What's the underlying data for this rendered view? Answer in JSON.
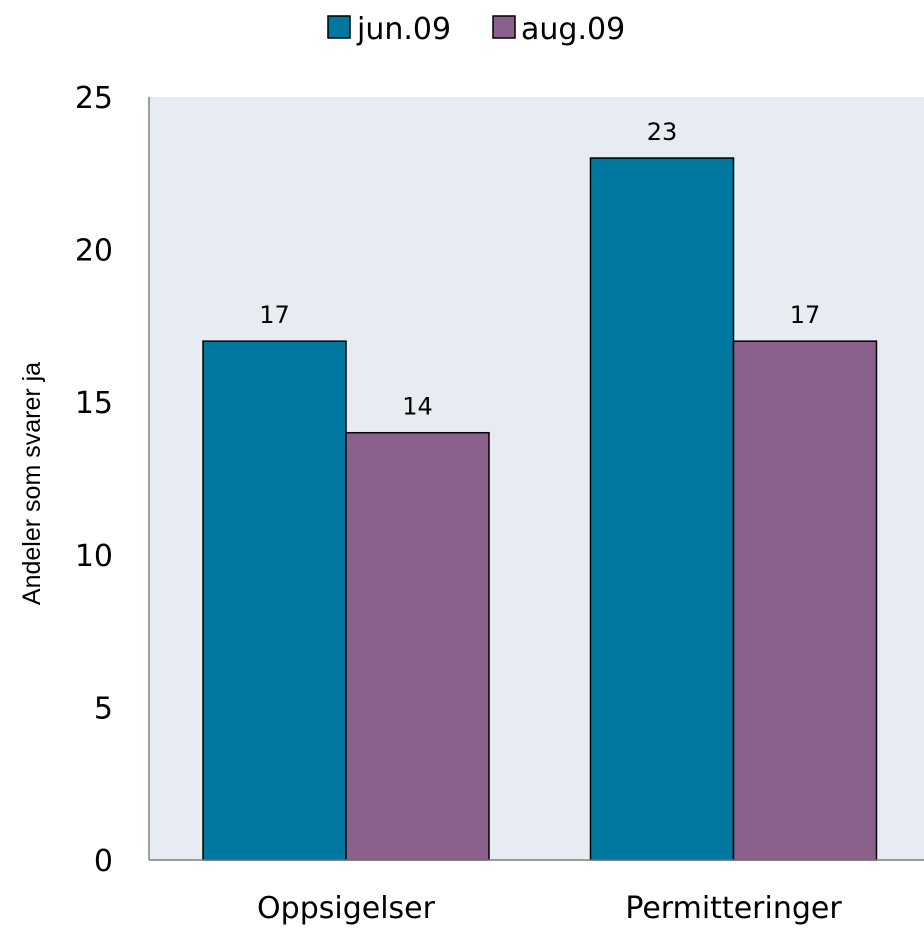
{
  "chart_data": {
    "type": "bar",
    "categories": [
      "Oppsigelser",
      "Permitteringer"
    ],
    "series": [
      {
        "name": "jun.09",
        "values": [
          17,
          23
        ],
        "color": "#00779E"
      },
      {
        "name": "aug.09",
        "values": [
          14,
          17
        ],
        "color": "#8B618B"
      }
    ],
    "title": "",
    "xlabel": "",
    "ylabel": "Andeler som svarer ja",
    "ylim": [
      0,
      25
    ],
    "yticks": [
      0,
      5,
      10,
      15,
      20,
      25
    ],
    "data_labels": true,
    "legend": "top-center",
    "grid": false,
    "plot_background": "#E7EBF2"
  }
}
